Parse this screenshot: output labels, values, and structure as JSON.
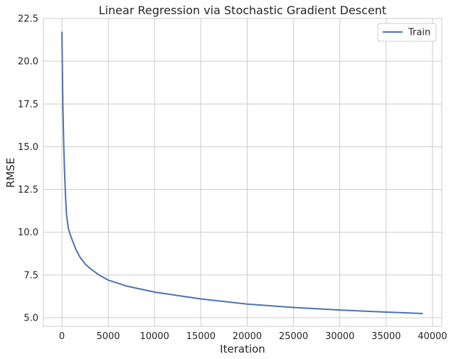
{
  "chart_data": {
    "type": "line",
    "title": "Linear Regression via Stochastic Gradient Descent",
    "xlabel": "Iteration",
    "ylabel": "RMSE",
    "xlim": [
      -2000,
      41000
    ],
    "ylim": [
      4.5,
      22.5
    ],
    "xticks": [
      0,
      5000,
      10000,
      15000,
      20000,
      25000,
      30000,
      35000,
      40000
    ],
    "yticks": [
      5.0,
      7.5,
      10.0,
      12.5,
      15.0,
      17.5,
      20.0,
      22.5
    ],
    "xtick_labels": [
      "0",
      "5000",
      "10000",
      "15000",
      "20000",
      "25000",
      "30000",
      "35000",
      "40000"
    ],
    "ytick_labels": [
      "5.0",
      "7.5",
      "10.0",
      "12.5",
      "15.0",
      "17.5",
      "20.0",
      "22.5"
    ],
    "grid": true,
    "legend_position": "top-right",
    "series": [
      {
        "name": "Train",
        "color": "#4c72b0",
        "x": [
          0,
          50,
          100,
          200,
          300,
          400,
          500,
          700,
          1000,
          1500,
          2000,
          2500,
          3000,
          4000,
          5000,
          7000,
          10000,
          15000,
          20000,
          25000,
          30000,
          35000,
          38900
        ],
        "y": [
          21.7,
          19.5,
          17.5,
          15.0,
          13.3,
          12.0,
          11.0,
          10.2,
          9.7,
          9.0,
          8.5,
          8.15,
          7.9,
          7.5,
          7.2,
          6.85,
          6.5,
          6.1,
          5.8,
          5.6,
          5.45,
          5.33,
          5.25
        ]
      }
    ]
  }
}
